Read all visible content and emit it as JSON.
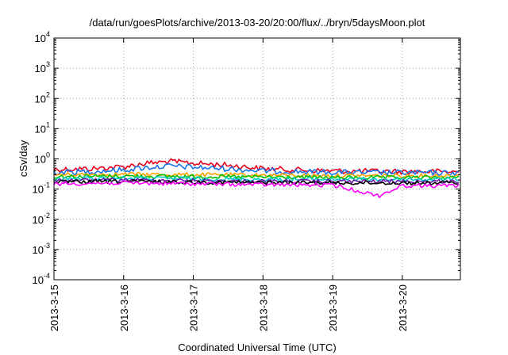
{
  "chart_data": {
    "type": "line",
    "title": "/data/run/goesPlots/archive/2013-03-20/20:00/flux/../bryn/5daysMoon.plot",
    "xlabel": "Coordinated Universal Time (UTC)",
    "ylabel": "cSv/day",
    "yscale": "log",
    "ylim": [
      0.0001,
      10000
    ],
    "xlim": [
      "2013-03-15 00:00",
      "2013-03-20 20:00"
    ],
    "grid": true,
    "legend": "none",
    "x_ticks": [
      "2013-3-15",
      "2013-3-16",
      "2013-3-17",
      "2013-3-18",
      "2013-3-19",
      "2013-3-20"
    ],
    "y_ticks": [
      {
        "value": 0.0001,
        "base": "10",
        "exp": "-4"
      },
      {
        "value": 0.001,
        "base": "10",
        "exp": "-3"
      },
      {
        "value": 0.01,
        "base": "10",
        "exp": "-2"
      },
      {
        "value": 0.1,
        "base": "10",
        "exp": "-1"
      },
      {
        "value": 1,
        "base": "10",
        "exp": "0"
      },
      {
        "value": 10,
        "base": "10",
        "exp": "1"
      },
      {
        "value": 100,
        "base": "10",
        "exp": "2"
      },
      {
        "value": 1000,
        "base": "10",
        "exp": "3"
      },
      {
        "value": 10000,
        "base": "10",
        "exp": "4"
      }
    ],
    "series": [
      {
        "color": "#e8001c",
        "x": [
          "2013-03-15 00:00",
          "2013-03-15 12:00",
          "2013-03-16 00:00",
          "2013-03-16 08:00",
          "2013-03-16 16:00",
          "2013-03-17 00:00",
          "2013-03-17 12:00",
          "2013-03-18 00:00",
          "2013-03-18 12:00",
          "2013-03-19 00:00",
          "2013-03-19 12:00",
          "2013-03-20 00:00",
          "2013-03-20 12:00",
          "2013-03-20 20:00"
        ],
        "y": [
          0.45,
          0.47,
          0.55,
          0.72,
          0.82,
          0.72,
          0.62,
          0.48,
          0.43,
          0.4,
          0.39,
          0.38,
          0.38,
          0.37
        ]
      },
      {
        "color": "#1874e8",
        "x": [
          "2013-03-15 00:00",
          "2013-03-15 12:00",
          "2013-03-16 00:00",
          "2013-03-16 08:00",
          "2013-03-16 16:00",
          "2013-03-17 00:00",
          "2013-03-17 12:00",
          "2013-03-18 00:00",
          "2013-03-18 12:00",
          "2013-03-19 00:00",
          "2013-03-19 12:00",
          "2013-03-20 00:00",
          "2013-03-20 12:00",
          "2013-03-20 20:00"
        ],
        "y": [
          0.36,
          0.38,
          0.43,
          0.52,
          0.58,
          0.53,
          0.47,
          0.4,
          0.38,
          0.36,
          0.35,
          0.35,
          0.34,
          0.34
        ]
      },
      {
        "color": "#ffa000",
        "x": [
          "2013-03-15 00:00",
          "2013-03-16 00:00",
          "2013-03-17 00:00",
          "2013-03-18 00:00",
          "2013-03-19 00:00",
          "2013-03-20 00:00",
          "2013-03-20 20:00"
        ],
        "y": [
          0.3,
          0.31,
          0.3,
          0.29,
          0.28,
          0.28,
          0.28
        ]
      },
      {
        "color": "#00c000",
        "x": [
          "2013-03-15 00:00",
          "2013-03-16 00:00",
          "2013-03-17 00:00",
          "2013-03-18 00:00",
          "2013-03-19 00:00",
          "2013-03-20 00:00",
          "2013-03-20 20:00"
        ],
        "y": [
          0.26,
          0.27,
          0.26,
          0.25,
          0.24,
          0.24,
          0.24
        ]
      },
      {
        "color": "#00c8c8",
        "x": [
          "2013-03-15 00:00",
          "2013-03-16 00:00",
          "2013-03-17 00:00",
          "2013-03-18 00:00",
          "2013-03-19 00:00",
          "2013-03-20 00:00",
          "2013-03-20 20:00"
        ],
        "y": [
          0.22,
          0.23,
          0.22,
          0.21,
          0.21,
          0.21,
          0.21
        ]
      },
      {
        "color": "#6a1aa8",
        "x": [
          "2013-03-15 00:00",
          "2013-03-16 00:00",
          "2013-03-17 00:00",
          "2013-03-18 00:00",
          "2013-03-19 00:00",
          "2013-03-20 00:00",
          "2013-03-20 20:00"
        ],
        "y": [
          0.19,
          0.2,
          0.19,
          0.18,
          0.18,
          0.18,
          0.18
        ]
      },
      {
        "color": "#000000",
        "x": [
          "2013-03-15 00:00",
          "2013-03-16 00:00",
          "2013-03-17 00:00",
          "2013-03-18 00:00",
          "2013-03-19 00:00",
          "2013-03-20 00:00",
          "2013-03-20 20:00"
        ],
        "y": [
          0.17,
          0.18,
          0.17,
          0.165,
          0.16,
          0.16,
          0.16
        ]
      },
      {
        "color": "#ff00ff",
        "x": [
          "2013-03-15 00:00",
          "2013-03-16 00:00",
          "2013-03-17 00:00",
          "2013-03-18 00:00",
          "2013-03-19 00:00",
          "2013-03-19 16:00",
          "2013-03-20 00:00",
          "2013-03-20 20:00"
        ],
        "y": [
          0.15,
          0.16,
          0.15,
          0.14,
          0.135,
          0.06,
          0.13,
          0.13
        ]
      }
    ]
  }
}
